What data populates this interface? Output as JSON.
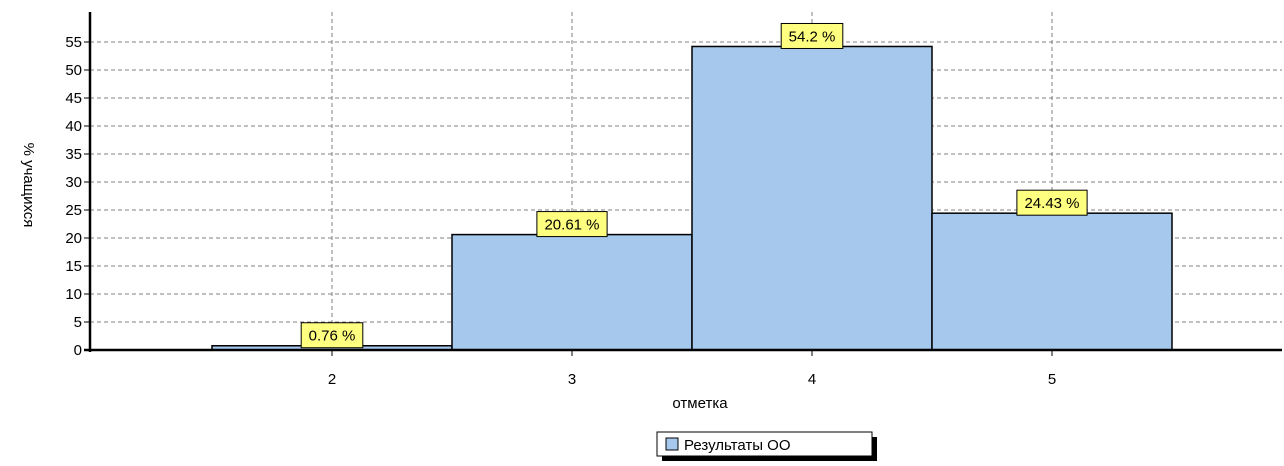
{
  "chart_data": {
    "type": "bar",
    "categories": [
      "2",
      "3",
      "4",
      "5"
    ],
    "series": [
      {
        "name": "Результаты ОО",
        "values": [
          0.76,
          20.61,
          54.2,
          24.43
        ]
      }
    ],
    "data_labels": [
      "0.76 %",
      "20.61 %",
      "54.2 %",
      "24.43 %"
    ],
    "xlabel": "отметка",
    "ylabel": "% учащихся",
    "ylim": [
      0,
      55
    ],
    "yticks": [
      0,
      5,
      10,
      15,
      20,
      25,
      30,
      35,
      40,
      45,
      50,
      55
    ],
    "grid": true,
    "legend_position": "bottom-center",
    "colors": {
      "bar_fill": "#a6c8ec",
      "bar_stroke": "#000000",
      "label_fill": "#ffff80",
      "grid": "#808080"
    }
  }
}
